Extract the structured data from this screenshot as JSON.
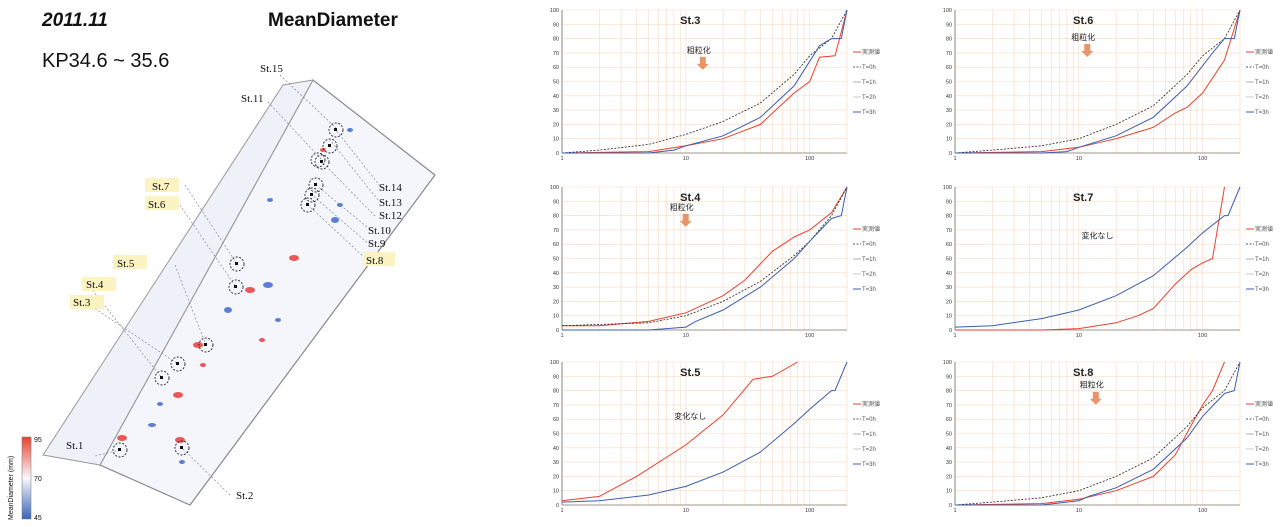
{
  "header": {
    "year": "2011.11",
    "metric": "MeanDiameter",
    "range": "KP34.6 ~ 35.6"
  },
  "colorbar": {
    "label": "MeanDiameter (mm)",
    "max": "95",
    "mid": "70",
    "min": "45"
  },
  "stations": [
    "St.1",
    "St.2",
    "St.3",
    "St.4",
    "St.5",
    "St.6",
    "St.7",
    "St.8",
    "St.9",
    "St.10",
    "St.11",
    "St.12",
    "St.13",
    "St.14",
    "St.15"
  ],
  "colors": {
    "measured": "#e8412c",
    "sim": "#3a5fb0",
    "highlight": "#fbf3c2",
    "arrow": "#e8956a"
  },
  "chart_data": [
    {
      "type": "line",
      "title": "St.3",
      "xscale": "log",
      "xlim": [
        1,
        200
      ],
      "ylim": [
        0,
        100
      ],
      "xticks": [
        "1",
        "10",
        "100"
      ],
      "yticks": [
        "0",
        "10",
        "20",
        "30",
        "40",
        "50",
        "60",
        "70",
        "80",
        "90",
        "100"
      ],
      "legend": [
        "実測値",
        "T=0h",
        "T=1h",
        "T=2h",
        "T=3h"
      ],
      "annotation": "粗粒化",
      "series": [
        {
          "name": "実測値",
          "x": [
            1,
            5,
            10,
            20,
            40,
            75,
            100,
            120,
            160,
            200
          ],
          "y": [
            0,
            1,
            5,
            10,
            20,
            42,
            50,
            67,
            68,
            100
          ]
        },
        {
          "name": "T=0h",
          "x": [
            1,
            2,
            5,
            10,
            20,
            40,
            75,
            100,
            150,
            200
          ],
          "y": [
            0,
            2,
            6,
            13,
            22,
            35,
            55,
            68,
            80,
            100
          ]
        },
        {
          "name": "T=3h",
          "x": [
            1,
            5,
            8,
            10,
            20,
            40,
            75,
            120,
            150,
            180,
            200
          ],
          "y": [
            0,
            0,
            2,
            5,
            12,
            25,
            47,
            75,
            80,
            80,
            100
          ]
        }
      ]
    },
    {
      "type": "line",
      "title": "St.6",
      "xscale": "log",
      "xlim": [
        1,
        200
      ],
      "ylim": [
        0,
        100
      ],
      "xticks": [
        "1",
        "10",
        "100"
      ],
      "yticks": [
        "0",
        "10",
        "20",
        "30",
        "40",
        "50",
        "60",
        "70",
        "80",
        "90",
        "100"
      ],
      "legend": [
        "実測値",
        "T=0h",
        "T=1h",
        "T=2h",
        "T=3h"
      ],
      "annotation": "粗粒化",
      "series": [
        {
          "name": "実測値",
          "x": [
            1,
            5,
            10,
            20,
            40,
            60,
            75,
            100,
            150,
            200
          ],
          "y": [
            0,
            1,
            4,
            10,
            18,
            28,
            32,
            42,
            65,
            100
          ]
        },
        {
          "name": "T=0h",
          "x": [
            1,
            2,
            5,
            10,
            20,
            40,
            75,
            100,
            150,
            200
          ],
          "y": [
            0,
            2,
            5,
            10,
            20,
            33,
            55,
            68,
            80,
            100
          ]
        },
        {
          "name": "T=3h",
          "x": [
            1,
            5,
            8,
            10,
            20,
            40,
            75,
            120,
            150,
            180,
            200
          ],
          "y": [
            0,
            0,
            1,
            4,
            12,
            25,
            47,
            70,
            80,
            80,
            100
          ]
        }
      ]
    },
    {
      "type": "line",
      "title": "St.4",
      "xscale": "log",
      "xlim": [
        1,
        200
      ],
      "ylim": [
        0,
        100
      ],
      "xticks": [
        "1",
        "10",
        "100"
      ],
      "yticks": [
        "0",
        "10",
        "20",
        "30",
        "40",
        "50",
        "60",
        "70",
        "80",
        "90",
        "100"
      ],
      "legend": [
        "実測値",
        "T=0h",
        "T=1h",
        "T=2h",
        "T=3h"
      ],
      "annotation": "粗粒化",
      "series": [
        {
          "name": "実測値",
          "x": [
            1,
            2,
            5,
            10,
            20,
            30,
            50,
            75,
            100,
            150,
            200
          ],
          "y": [
            3,
            3,
            6,
            12,
            24,
            35,
            55,
            65,
            70,
            82,
            100
          ]
        },
        {
          "name": "T=0h",
          "x": [
            1,
            5,
            10,
            20,
            40,
            75,
            100,
            150,
            200
          ],
          "y": [
            3,
            5,
            10,
            20,
            34,
            52,
            62,
            80,
            100
          ]
        },
        {
          "name": "T=3h",
          "x": [
            1,
            5,
            10,
            12,
            20,
            40,
            75,
            100,
            150,
            180,
            200
          ],
          "y": [
            0,
            0,
            2,
            6,
            14,
            30,
            50,
            62,
            78,
            80,
            100
          ]
        }
      ]
    },
    {
      "type": "line",
      "title": "St.7",
      "xscale": "log",
      "xlim": [
        1,
        200
      ],
      "ylim": [
        0,
        100
      ],
      "xticks": [
        "1",
        "10",
        "100"
      ],
      "yticks": [
        "0",
        "10",
        "20",
        "30",
        "40",
        "50",
        "60",
        "70",
        "80",
        "90",
        "100"
      ],
      "legend": [
        "実測値",
        "T=0h",
        "T=1h",
        "T=2h",
        "T=3h"
      ],
      "annotation": "変化なし",
      "series": [
        {
          "name": "実測値",
          "x": [
            1,
            5,
            10,
            20,
            30,
            40,
            60,
            80,
            100,
            120,
            150
          ],
          "y": [
            0,
            0,
            1,
            5,
            10,
            15,
            32,
            42,
            47,
            50,
            100
          ]
        },
        {
          "name": "T=3h",
          "x": [
            1,
            2,
            5,
            10,
            20,
            40,
            75,
            100,
            150,
            160,
            200
          ],
          "y": [
            2,
            3,
            8,
            14,
            24,
            38,
            58,
            68,
            80,
            80,
            100
          ]
        }
      ]
    },
    {
      "type": "line",
      "title": "St.5",
      "xscale": "log",
      "xlim": [
        1,
        200
      ],
      "ylim": [
        0,
        100
      ],
      "xticks": [
        "1",
        "10",
        "100"
      ],
      "yticks": [
        "0",
        "10",
        "20",
        "30",
        "40",
        "50",
        "60",
        "70",
        "80",
        "90",
        "100"
      ],
      "legend": [
        "実測値",
        "T=0h",
        "T=1h",
        "T=2h",
        "T=3h"
      ],
      "annotation": "変化なし",
      "series": [
        {
          "name": "実測値",
          "x": [
            1,
            2,
            4,
            10,
            20,
            35,
            50,
            80
          ],
          "y": [
            3,
            6,
            20,
            42,
            63,
            88,
            90,
            100
          ]
        },
        {
          "name": "T=3h",
          "x": [
            1,
            2,
            5,
            10,
            20,
            40,
            75,
            100,
            150,
            160,
            200
          ],
          "y": [
            2,
            3,
            7,
            13,
            23,
            37,
            57,
            67,
            80,
            80,
            100
          ]
        }
      ]
    },
    {
      "type": "line",
      "title": "St.8",
      "xscale": "log",
      "xlim": [
        1,
        200
      ],
      "ylim": [
        0,
        100
      ],
      "xticks": [
        "1",
        "10",
        "100"
      ],
      "yticks": [
        "0",
        "10",
        "20",
        "30",
        "40",
        "50",
        "60",
        "70",
        "80",
        "90",
        "100"
      ],
      "legend": [
        "実測値",
        "T=0h",
        "T=1h",
        "T=2h",
        "T=3h"
      ],
      "annotation": "粗粒化",
      "series": [
        {
          "name": "実測値",
          "x": [
            1,
            5,
            10,
            20,
            40,
            60,
            80,
            100,
            120,
            150
          ],
          "y": [
            0,
            1,
            4,
            10,
            20,
            35,
            55,
            70,
            80,
            100
          ]
        },
        {
          "name": "T=0h",
          "x": [
            1,
            2,
            5,
            10,
            20,
            40,
            75,
            100,
            150,
            200
          ],
          "y": [
            0,
            2,
            5,
            10,
            20,
            33,
            55,
            68,
            80,
            100
          ]
        },
        {
          "name": "T=3h",
          "x": [
            1,
            5,
            10,
            12,
            20,
            40,
            75,
            100,
            150,
            180,
            200
          ],
          "y": [
            0,
            0,
            3,
            6,
            12,
            25,
            47,
            62,
            78,
            80,
            100
          ]
        }
      ]
    }
  ]
}
